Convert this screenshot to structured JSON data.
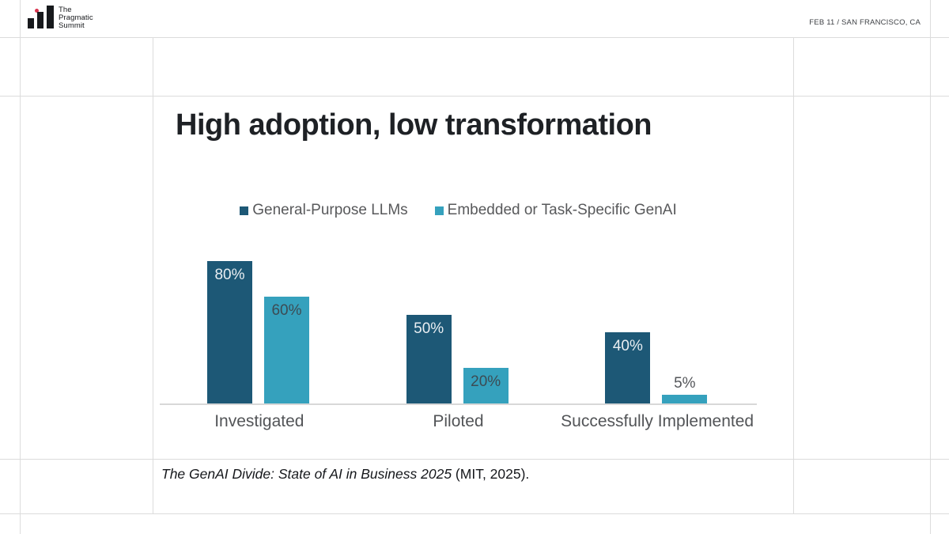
{
  "header": {
    "logo_lines": [
      "The",
      "Pragmatic",
      "Summit"
    ],
    "event_info": "FEB 11 / SAN FRANCISCO, CA"
  },
  "main": {
    "title": "High adoption, low transformation"
  },
  "chart_data": {
    "type": "bar",
    "title": "High adoption, low transformation",
    "categories": [
      "Investigated",
      "Piloted",
      "Successfully Implemented"
    ],
    "series": [
      {
        "name": "General-Purpose LLMs",
        "color": "#1d5876",
        "values": [
          80,
          50,
          40
        ]
      },
      {
        "name": "Embedded or Task-Specific GenAI",
        "color": "#35a1bd",
        "values": [
          60,
          20,
          5
        ]
      }
    ],
    "value_suffix": "%",
    "ylim": [
      0,
      90
    ],
    "legend_position": "top",
    "grid": false,
    "axis_color": "#d8d8d8"
  },
  "citation": {
    "italic": "The GenAI Divide: State of AI in Business 2025",
    "regular": " (MIT, 2025)."
  },
  "colors": {
    "series_dark": "#1d5876",
    "series_teal": "#35a1bd",
    "logo_dot": "#d9344e",
    "grid_line": "#dcdcdc",
    "text_muted": "#58595b"
  }
}
